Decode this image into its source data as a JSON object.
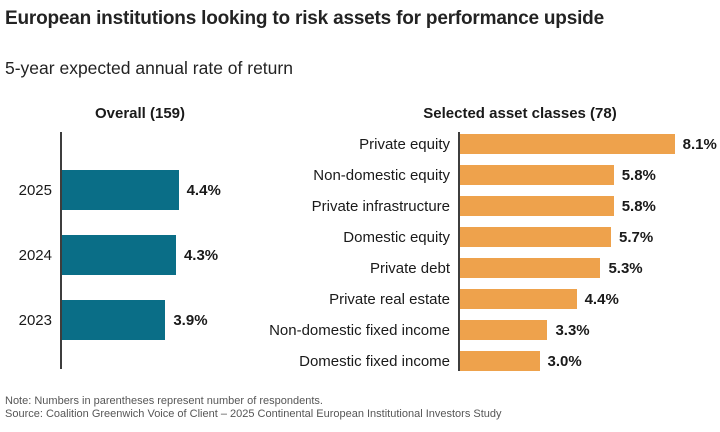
{
  "title": "European institutions looking to risk assets for performance upside",
  "subtitle": "5-year expected annual rate of return",
  "note": "Note: Numbers in parentheses represent number of respondents.",
  "source": "Source: Coalition Greenwich Voice of Client – 2025 Continental European Institutional Investors Study",
  "colors": {
    "teal": "#0a6e87",
    "orange": "#eea24c",
    "axis": "#3d3d3d",
    "text": "#1a1a1a",
    "muted_text": "#565656"
  },
  "chart_data": [
    {
      "type": "bar",
      "orientation": "horizontal",
      "title": "Overall (159)",
      "categories": [
        "2025",
        "2024",
        "2023"
      ],
      "values": [
        4.4,
        4.3,
        3.9
      ],
      "unit": "%",
      "value_labels": [
        "4.4%",
        "4.3%",
        "3.9%"
      ],
      "bar_color": "#0a6e87",
      "xlim": [
        0,
        9
      ],
      "grid": false,
      "legend": false
    },
    {
      "type": "bar",
      "orientation": "horizontal",
      "title": "Selected asset classes (78)",
      "categories": [
        "Private equity",
        "Non-domestic equity",
        "Private infrastructure",
        "Domestic equity",
        "Private debt",
        "Private real estate",
        "Non-domestic fixed income",
        "Domestic fixed income"
      ],
      "values": [
        8.1,
        5.8,
        5.8,
        5.7,
        5.3,
        4.4,
        3.3,
        3.0
      ],
      "unit": "%",
      "value_labels": [
        "8.1%",
        "5.8%",
        "5.8%",
        "5.7%",
        "5.3%",
        "4.4%",
        "3.3%",
        "3.0%"
      ],
      "bar_color": "#eea24c",
      "xlim": [
        0,
        9
      ],
      "grid": false,
      "legend": false
    }
  ]
}
